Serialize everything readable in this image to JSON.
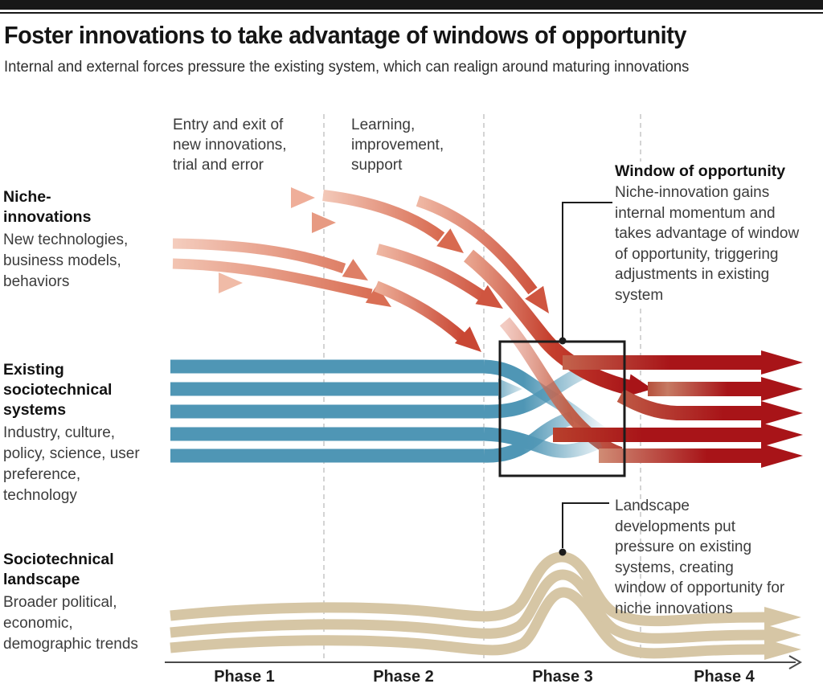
{
  "header": {
    "title": "Foster innovations to take advantage of windows of opportunity",
    "subtitle": "Internal and external forces pressure the existing system, which can realign around maturing innovations"
  },
  "levels": {
    "niche": {
      "title": "Niche-innovations",
      "desc": "New technologies, business models, behaviors"
    },
    "regime": {
      "title": "Existing sociotechnical systems",
      "desc": "Industry, culture, policy, science, user preference, technology"
    },
    "landscape": {
      "title": "Sociotechnical landscape",
      "desc": "Broader political, economic, demographic trends"
    }
  },
  "annotations": {
    "entry_exit": "Entry and exit of new innovations, trial and error",
    "learning": "Learning, improvement, support",
    "window_title": "Window of opportunity",
    "window_body": "Niche-innovation gains internal momentum and takes advantage of window of opportunity, triggering adjustments in existing system",
    "landscape_note": "Landscape developments put pressure on existing systems, creating window of opportunity for niche innovations"
  },
  "axis": {
    "phases": [
      "Phase 1",
      "Phase 2",
      "Phase 3",
      "Phase 4"
    ]
  },
  "colors": {
    "niche_light": "#f7dbd0",
    "niche_mid": "#e08a72",
    "niche_deep": "#c94734",
    "regime_blue": "#4f96b5",
    "transition_red": "#a81418",
    "landscape_tan": "#d6c6a5",
    "line_dark": "#1c1c1c",
    "dash_gray": "#c6c6c6",
    "axis_gray": "#4a4a4a"
  }
}
